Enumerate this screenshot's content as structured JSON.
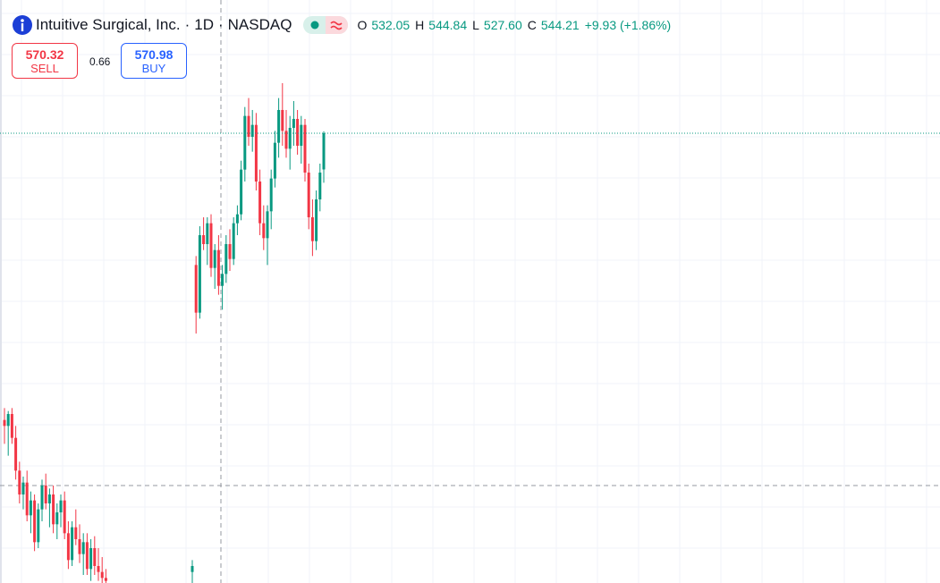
{
  "header": {
    "symbol": "Intuitive Surgical, Inc.",
    "separator": "·",
    "interval": "1D",
    "exchange": "NASDAQ",
    "ohlc": [
      {
        "label": "O",
        "value": "532.05"
      },
      {
        "label": "H",
        "value": "544.84"
      },
      {
        "label": "L",
        "value": "527.60"
      },
      {
        "label": "C",
        "value": "544.21"
      }
    ],
    "change": "+9.93 (+1.86%)"
  },
  "trade": {
    "sell_price": "570.32",
    "sell_label": "SELL",
    "spread": "0.66",
    "buy_price": "570.98",
    "buy_label": "BUY"
  },
  "chart_data": {
    "type": "candlestick",
    "up_color": "#089981",
    "down_color": "#f23645",
    "ylim": [
      393.3,
      588.9
    ],
    "categories": [
      null,
      null,
      null,
      null,
      null,
      null,
      null,
      null,
      null,
      null,
      null,
      null,
      null,
      null,
      null,
      null,
      null,
      null,
      null,
      null,
      null,
      null,
      null,
      null,
      null,
      null,
      null,
      null,
      null,
      null,
      null,
      null,
      null,
      null,
      null,
      null,
      null,
      null,
      null,
      null,
      null,
      null,
      null,
      null,
      null,
      null,
      null,
      null,
      null,
      null,
      null,
      null,
      null,
      null,
      null,
      null,
      null,
      null,
      null,
      null,
      null,
      null,
      null,
      null,
      null,
      null,
      null,
      null,
      null,
      null,
      null,
      null,
      null,
      null,
      null,
      null,
      null,
      null,
      null,
      null,
      null,
      null,
      null,
      null,
      null,
      null
    ],
    "open": [
      448,
      446,
      450,
      442,
      431,
      423,
      427,
      416,
      421,
      407,
      418,
      426,
      420,
      423,
      413,
      417,
      421,
      410,
      401,
      412,
      408,
      403,
      407,
      398,
      405,
      399,
      397,
      395,
      null,
      null,
      null,
      null,
      null,
      null,
      null,
      null,
      null,
      null,
      null,
      null,
      null,
      null,
      null,
      null,
      null,
      null,
      null,
      null,
      null,
      null,
      397,
      500,
      484,
      510,
      507,
      514,
      499,
      505,
      493,
      497,
      507,
      502,
      514,
      517,
      532,
      550,
      543,
      547,
      528,
      514,
      509,
      518,
      529,
      541,
      552,
      545,
      539,
      546,
      549,
      540,
      547,
      531,
      516,
      508,
      522,
      532.05
    ],
    "high": [
      452,
      451,
      452,
      446,
      434,
      429,
      431,
      424,
      423,
      420,
      428,
      430,
      425,
      426,
      420,
      423,
      424,
      414,
      414,
      418,
      413,
      410,
      410,
      408,
      409,
      405,
      402,
      398,
      null,
      null,
      null,
      null,
      null,
      null,
      null,
      null,
      null,
      null,
      null,
      null,
      null,
      null,
      null,
      null,
      null,
      null,
      null,
      null,
      null,
      null,
      401,
      503,
      513,
      516,
      516,
      517,
      507,
      510,
      500,
      510,
      512,
      516,
      520,
      535,
      553,
      556,
      552,
      551,
      532,
      520,
      520,
      532,
      545,
      556,
      561,
      552,
      550,
      555,
      552,
      550,
      549,
      534,
      522,
      525,
      534,
      544.84
    ],
    "low": [
      440,
      436,
      440,
      428,
      420,
      418,
      414,
      410,
      404,
      405,
      414,
      418,
      412,
      410,
      408,
      412,
      408,
      398,
      399,
      406,
      400,
      396,
      396,
      394,
      396,
      394,
      393,
      393,
      null,
      null,
      null,
      null,
      null,
      null,
      null,
      null,
      null,
      null,
      null,
      null,
      null,
      null,
      null,
      null,
      null,
      null,
      null,
      null,
      null,
      null,
      393,
      477,
      482,
      505,
      500,
      496,
      492,
      490,
      485,
      494,
      498,
      500,
      510,
      515,
      528,
      540,
      538,
      525,
      510,
      505,
      500,
      512,
      526,
      536,
      540,
      536,
      532,
      540,
      537,
      534,
      528,
      512,
      503,
      505,
      518,
      527.6
    ],
    "close": [
      446,
      450,
      442,
      431,
      423,
      427,
      416,
      421,
      407,
      418,
      426,
      420,
      423,
      413,
      417,
      421,
      410,
      401,
      412,
      408,
      403,
      407,
      398,
      405,
      399,
      397,
      395,
      394,
      null,
      null,
      null,
      null,
      null,
      null,
      null,
      null,
      null,
      null,
      null,
      null,
      null,
      null,
      null,
      null,
      null,
      null,
      null,
      null,
      null,
      null,
      399,
      484,
      510,
      507,
      514,
      499,
      505,
      493,
      497,
      507,
      502,
      514,
      517,
      532,
      550,
      543,
      547,
      528,
      514,
      509,
      518,
      529,
      541,
      552,
      545,
      539,
      546,
      549,
      540,
      547,
      531,
      516,
      508,
      522,
      531,
      544.21
    ]
  }
}
